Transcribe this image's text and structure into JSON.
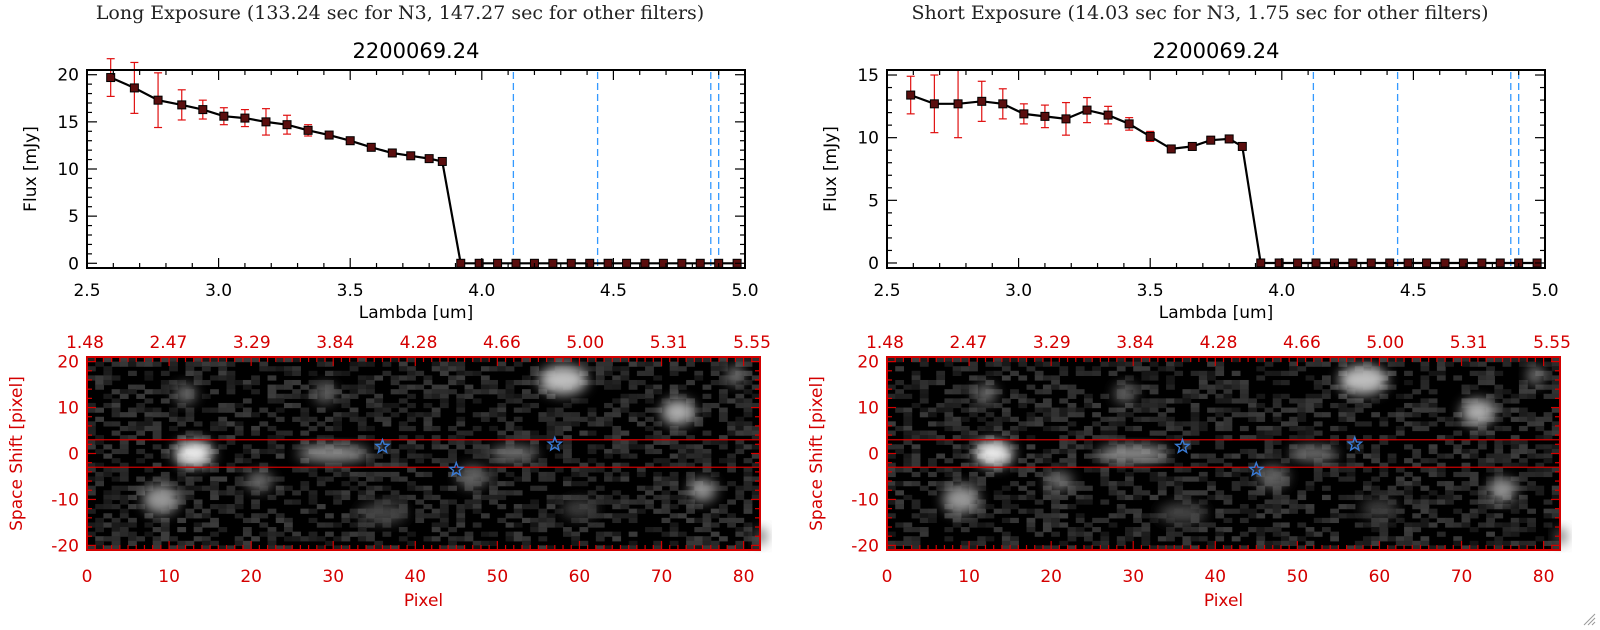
{
  "panels": [
    {
      "header": "Long Exposure (133.24 sec for N3, 147.27 sec for other filters)",
      "chart_data": [
        {
          "type": "line",
          "title": "2200069.24",
          "xlabel": "Lambda [um]",
          "ylabel": "Flux [mJy]",
          "xlim": [
            2.5,
            5.0
          ],
          "ylim": [
            -0.5,
            20.5
          ],
          "xticks": [
            "2.5",
            "3.0",
            "3.5",
            "4.0",
            "4.5",
            "5.0"
          ],
          "yticks": [
            "0",
            "5",
            "10",
            "15",
            "20"
          ],
          "x": [
            2.59,
            2.68,
            2.77,
            2.86,
            2.94,
            3.02,
            3.1,
            3.18,
            3.26,
            3.34,
            3.42,
            3.5,
            3.58,
            3.66,
            3.73,
            3.8,
            3.85,
            3.92,
            3.99,
            4.06,
            4.13,
            4.2,
            4.27,
            4.34,
            4.41,
            4.48,
            4.55,
            4.62,
            4.69,
            4.76,
            4.83,
            4.9,
            4.97
          ],
          "values": [
            19.7,
            18.6,
            17.3,
            16.8,
            16.3,
            15.6,
            15.4,
            15.0,
            14.7,
            14.1,
            13.6,
            13.0,
            12.3,
            11.7,
            11.4,
            11.1,
            10.8,
            0,
            0,
            0,
            0,
            0,
            0,
            0,
            0,
            0,
            0,
            0,
            0,
            0,
            0,
            0,
            0
          ],
          "errors": [
            2.0,
            2.7,
            2.9,
            1.6,
            1.0,
            0.9,
            0.9,
            1.4,
            1.0,
            0.6,
            0.3,
            0.0,
            0.0,
            0.0,
            0.0,
            0.0,
            0.0,
            0,
            0,
            0,
            0,
            0,
            0,
            0,
            0,
            0,
            0,
            0,
            0,
            0,
            0,
            0,
            0
          ],
          "vlines": [
            4.12,
            4.44,
            4.87,
            4.9
          ]
        },
        {
          "type": "heatmap",
          "xlabel": "Pixel",
          "ylabel": "Space Shift [pixel]",
          "xlim": [
            0,
            82
          ],
          "ylim": [
            -21,
            21
          ],
          "xticks": [
            "0",
            "10",
            "20",
            "30",
            "40",
            "50",
            "60",
            "70",
            "80"
          ],
          "yticks": [
            "-20",
            "-10",
            "0",
            "10",
            "20"
          ],
          "top_ticks": [
            "1.48",
            "2.47",
            "3.29",
            "3.84",
            "4.28",
            "4.66",
            "5.00",
            "5.31",
            "5.55"
          ],
          "band": [
            -3,
            3
          ],
          "stars": [
            {
              "x": 36,
              "y": 1.5
            },
            {
              "x": 57,
              "y": 2
            },
            {
              "x": 45,
              "y": -3.5
            }
          ]
        }
      ]
    },
    {
      "header": "Short Exposure (14.03 sec for N3, 1.75 sec for other filters)",
      "chart_data": [
        {
          "type": "line",
          "title": "2200069.24",
          "xlabel": "Lambda [um]",
          "ylabel": "Flux [mJy]",
          "xlim": [
            2.5,
            5.0
          ],
          "ylim": [
            -0.4,
            15.4
          ],
          "xticks": [
            "2.5",
            "3.0",
            "3.5",
            "4.0",
            "4.5",
            "5.0"
          ],
          "yticks": [
            "0",
            "5",
            "10",
            "15"
          ],
          "x": [
            2.59,
            2.68,
            2.77,
            2.86,
            2.94,
            3.02,
            3.1,
            3.18,
            3.26,
            3.34,
            3.42,
            3.5,
            3.58,
            3.66,
            3.73,
            3.8,
            3.85,
            3.92,
            3.99,
            4.06,
            4.13,
            4.2,
            4.27,
            4.34,
            4.41,
            4.48,
            4.55,
            4.62,
            4.69,
            4.76,
            4.83,
            4.9,
            4.97
          ],
          "values": [
            13.4,
            12.7,
            12.7,
            12.9,
            12.7,
            11.9,
            11.7,
            11.5,
            12.2,
            11.8,
            11.1,
            10.1,
            9.1,
            9.3,
            9.8,
            9.9,
            9.3,
            0,
            0,
            0,
            0,
            0,
            0,
            0,
            0,
            0,
            0,
            0,
            0,
            0,
            0,
            0,
            0
          ],
          "errors": [
            1.5,
            2.3,
            2.7,
            1.6,
            1.2,
            0.8,
            0.9,
            1.3,
            1.0,
            0.7,
            0.5,
            0.4,
            0.3,
            0.3,
            0.3,
            0.3,
            0.3,
            0,
            0,
            0,
            0,
            0,
            0,
            0,
            0,
            0,
            0,
            0,
            0,
            0,
            0,
            0,
            0
          ],
          "vlines": [
            4.12,
            4.44,
            4.87,
            4.9
          ]
        },
        {
          "type": "heatmap",
          "xlabel": "Pixel",
          "ylabel": "Space Shift [pixel]",
          "xlim": [
            0,
            82
          ],
          "ylim": [
            -21,
            21
          ],
          "xticks": [
            "0",
            "10",
            "20",
            "30",
            "40",
            "50",
            "60",
            "70",
            "80"
          ],
          "yticks": [
            "-20",
            "-10",
            "0",
            "10",
            "20"
          ],
          "top_ticks": [
            "1.48",
            "2.47",
            "3.29",
            "3.84",
            "4.28",
            "4.66",
            "5.00",
            "5.31",
            "5.55"
          ],
          "band": [
            -3,
            3
          ],
          "stars": [
            {
              "x": 36,
              "y": 1.5
            },
            {
              "x": 57,
              "y": 2
            },
            {
              "x": 45,
              "y": -3.5
            }
          ]
        }
      ]
    }
  ],
  "colors": {
    "line": "#000000",
    "marker": "#5a0e0e",
    "errorbar": "#e01010",
    "vline": "#3399ff",
    "image_axis": "#d40000",
    "band": "#cc0000",
    "star": "#3a7bd5"
  }
}
